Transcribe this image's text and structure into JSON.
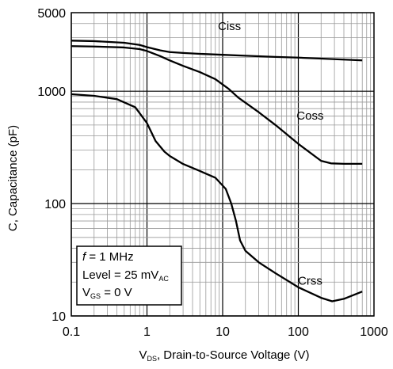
{
  "chart_data": {
    "type": "line",
    "x_scale": "log",
    "y_scale": "log",
    "xlim": [
      0.1,
      1000
    ],
    "ylim": [
      10,
      5000
    ],
    "grid": true,
    "x_ticks": [
      0.1,
      1,
      10,
      100,
      1000
    ],
    "x_tick_labels": [
      "0.1",
      "1",
      "10",
      "100",
      "1000"
    ],
    "y_ticks": [
      10,
      100,
      1000,
      5000
    ],
    "y_tick_labels": [
      "10",
      "100",
      "1000",
      "5000"
    ],
    "xlabel": {
      "main": "V",
      "sub": "DS",
      "rest": ", Drain-to-Source Voltage (V)"
    },
    "ylabel": "C, Capacitance (pF)",
    "conditions": {
      "line1": {
        "italic": "f",
        "rest": " = 1 MHz"
      },
      "line2": {
        "main": "Level = 25 mV",
        "sub": "AC"
      },
      "line3": {
        "main": "V",
        "sub": "GS",
        "rest": " = 0 V"
      }
    },
    "series": [
      {
        "name": "Ciss",
        "x": [
          0.1,
          0.2,
          0.5,
          0.8,
          1,
          1.5,
          2,
          3,
          5,
          10,
          20,
          50,
          100,
          200,
          500,
          700
        ],
        "y": [
          2820,
          2790,
          2700,
          2580,
          2470,
          2310,
          2230,
          2190,
          2150,
          2110,
          2070,
          2020,
          1990,
          1950,
          1900,
          1880
        ]
      },
      {
        "name": "Coss",
        "x": [
          0.1,
          0.2,
          0.5,
          0.8,
          1,
          1.5,
          2,
          3,
          5,
          8,
          12,
          16,
          20,
          30,
          50,
          100,
          200,
          270,
          400,
          700
        ],
        "y": [
          2520,
          2500,
          2450,
          2370,
          2280,
          2050,
          1880,
          1680,
          1480,
          1280,
          1050,
          880,
          790,
          650,
          500,
          340,
          240,
          228,
          226,
          226
        ]
      },
      {
        "name": "Crss",
        "x": [
          0.1,
          0.2,
          0.4,
          0.7,
          1,
          1.3,
          1.7,
          2,
          3,
          5,
          8,
          11,
          13,
          15,
          17,
          20,
          30,
          50,
          100,
          200,
          280,
          400,
          700
        ],
        "y": [
          940,
          910,
          850,
          720,
          520,
          360,
          290,
          265,
          225,
          195,
          170,
          135,
          100,
          70,
          47,
          38,
          30,
          24,
          18,
          14.5,
          13.5,
          14.2,
          16.5
        ]
      }
    ]
  }
}
